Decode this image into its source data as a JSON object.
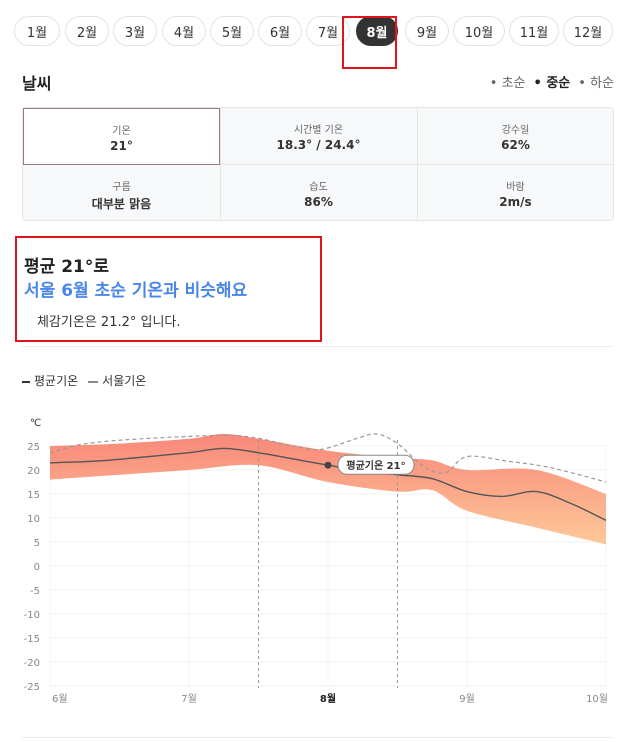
{
  "months": [
    "1월",
    "2월",
    "3월",
    "4월",
    "5월",
    "6월",
    "7월",
    "8월",
    "9월",
    "10월",
    "11월",
    "12월"
  ],
  "active_month": "8월",
  "section": {
    "title": "날씨",
    "periods": [
      "초순",
      "중순",
      "하순"
    ],
    "selected_period": "중순"
  },
  "stats": [
    {
      "label": "기온",
      "value": "21°"
    },
    {
      "label": "시간별 기온",
      "value": "18.3° / 24.4°"
    },
    {
      "label": "강수일",
      "value": "62%"
    },
    {
      "label": "구름",
      "value": "대부분 맑음"
    },
    {
      "label": "습도",
      "value": "86%"
    },
    {
      "label": "바람",
      "value": "2m/s"
    }
  ],
  "summary": {
    "line1": "평균 21°로",
    "line2": "서울 6월 초순 기온과 비슷해요",
    "line3": "체감기온은 21.2° 입니다."
  },
  "legend": {
    "avg": "평균기온",
    "seoul": "서울기온"
  },
  "colors": {
    "accent": "#4a86e8",
    "band_top": "#f87a6a",
    "band_bottom": "#fdc28e",
    "highlight": "#e0141e"
  },
  "chart_data": {
    "type": "area",
    "ylabel": "℃",
    "ylim": [
      -25,
      25
    ],
    "yticks": [
      25,
      20,
      15,
      10,
      5,
      0,
      -5,
      -10,
      -15,
      -20,
      -25
    ],
    "xlim": [
      6,
      10
    ],
    "xticks": [
      {
        "x": 6,
        "label": "6월"
      },
      {
        "x": 7,
        "label": "7월"
      },
      {
        "x": 8,
        "label": "8월",
        "bold": true
      },
      {
        "x": 9,
        "label": "9월"
      },
      {
        "x": 10,
        "label": "10월"
      }
    ],
    "highlight_range": [
      7.5,
      8.5
    ],
    "marker": {
      "x": 8.0,
      "y": 21,
      "label": "평균기온 21°"
    },
    "series": [
      {
        "name": "평균기온",
        "style": "solid",
        "x": [
          6,
          6.3,
          6.6,
          7,
          7.25,
          7.5,
          7.75,
          8,
          8.25,
          8.5,
          8.75,
          9,
          9.25,
          9.5,
          9.75,
          10
        ],
        "y": [
          21.5,
          21.8,
          22.5,
          23.6,
          24.5,
          23.6,
          22.3,
          21,
          19.8,
          19,
          18.2,
          15.5,
          14.5,
          15.5,
          13,
          9.5
        ]
      },
      {
        "name": "서울기온",
        "style": "dashed",
        "x": [
          6,
          6.2,
          6.5,
          7,
          7.3,
          7.5,
          7.75,
          7.95,
          8.2,
          8.35,
          8.5,
          8.7,
          8.85,
          9,
          9.3,
          9.6,
          10
        ],
        "y": [
          23.5,
          25.2,
          26.2,
          27,
          27.2,
          26.6,
          25,
          24.3,
          26.5,
          27.5,
          25.5,
          20.5,
          19.5,
          22.8,
          21.8,
          20.5,
          17.5
        ]
      },
      {
        "name": "최고",
        "style": "band-top",
        "x": [
          6,
          6.5,
          7,
          7.25,
          7.5,
          8,
          8.5,
          8.75,
          9,
          9.5,
          10
        ],
        "y": [
          25,
          25.5,
          26.5,
          27.5,
          26.5,
          24,
          22.5,
          22,
          20,
          20,
          15
        ]
      },
      {
        "name": "최저",
        "style": "band-bottom",
        "x": [
          6,
          6.5,
          7,
          7.5,
          8,
          8.5,
          8.75,
          9,
          9.5,
          10
        ],
        "y": [
          18,
          19,
          20,
          21,
          17.5,
          15.5,
          15.8,
          11.5,
          8,
          4.5
        ]
      }
    ]
  }
}
